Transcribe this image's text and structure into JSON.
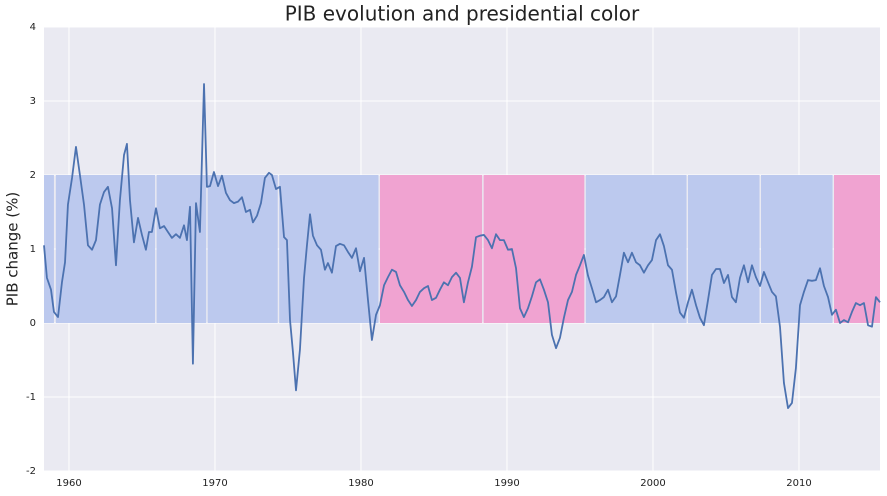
{
  "chart_data": {
    "type": "line",
    "title": "PIB evolution and presidential color",
    "y_label": "PIB change (%)",
    "x": [
      1958.29,
      1958.49,
      1958.77,
      1958.97,
      1959.25,
      1959.52,
      1959.73,
      1959.93,
      1960.21,
      1960.48,
      1960.75,
      1961.03,
      1961.3,
      1961.58,
      1961.85,
      1962.12,
      1962.4,
      1962.67,
      1962.95,
      1963.22,
      1963.49,
      1963.77,
      1963.97,
      1964.18,
      1964.45,
      1964.73,
      1965.0,
      1965.27,
      1965.48,
      1965.68,
      1965.96,
      1966.23,
      1966.51,
      1966.78,
      1967.05,
      1967.33,
      1967.6,
      1967.88,
      1968.08,
      1968.29,
      1968.49,
      1968.7,
      1968.97,
      1969.25,
      1969.45,
      1969.66,
      1969.93,
      1970.21,
      1970.48,
      1970.75,
      1971.03,
      1971.3,
      1971.58,
      1971.85,
      1972.12,
      1972.4,
      1972.6,
      1972.88,
      1973.15,
      1973.42,
      1973.7,
      1973.9,
      1974.18,
      1974.45,
      1974.73,
      1974.93,
      1975.14,
      1975.34,
      1975.55,
      1975.82,
      1976.1,
      1976.3,
      1976.51,
      1976.71,
      1976.99,
      1977.26,
      1977.53,
      1977.74,
      1978.01,
      1978.29,
      1978.56,
      1978.84,
      1979.11,
      1979.38,
      1979.66,
      1979.93,
      1980.21,
      1980.48,
      1980.75,
      1981.03,
      1981.3,
      1981.58,
      1981.85,
      1982.12,
      1982.4,
      1982.67,
      1982.95,
      1983.22,
      1983.49,
      1983.77,
      1984.04,
      1984.32,
      1984.59,
      1984.86,
      1985.14,
      1985.41,
      1985.68,
      1985.96,
      1986.23,
      1986.51,
      1986.78,
      1987.05,
      1987.33,
      1987.6,
      1987.88,
      1988.15,
      1988.42,
      1988.7,
      1988.97,
      1989.25,
      1989.52,
      1989.79,
      1990.07,
      1990.34,
      1990.62,
      1990.89,
      1991.16,
      1991.44,
      1991.71,
      1991.99,
      1992.26,
      1992.53,
      1992.81,
      1993.08,
      1993.36,
      1993.63,
      1993.9,
      1994.18,
      1994.45,
      1994.73,
      1995.0,
      1995.27,
      1995.55,
      1995.82,
      1996.1,
      1996.37,
      1996.64,
      1996.92,
      1997.19,
      1997.47,
      1997.74,
      1998.01,
      1998.29,
      1998.56,
      1998.84,
      1999.11,
      1999.38,
      1999.66,
      1999.93,
      2000.21,
      2000.48,
      2000.75,
      2001.03,
      2001.3,
      2001.58,
      2001.85,
      2002.12,
      2002.4,
      2002.67,
      2002.95,
      2003.22,
      2003.49,
      2003.77,
      2004.04,
      2004.32,
      2004.59,
      2004.86,
      2005.14,
      2005.41,
      2005.68,
      2005.96,
      2006.23,
      2006.51,
      2006.78,
      2007.05,
      2007.33,
      2007.6,
      2007.88,
      2008.15,
      2008.42,
      2008.7,
      2008.97,
      2009.25,
      2009.52,
      2009.79,
      2010.07,
      2010.34,
      2010.62,
      2010.89,
      2011.16,
      2011.44,
      2011.71,
      2011.99,
      2012.26,
      2012.53,
      2012.81,
      2013.08,
      2013.36,
      2013.63,
      2013.9,
      2014.18,
      2014.45,
      2014.73,
      2015.0,
      2015.27,
      2015.55
    ],
    "series": [
      {
        "color": "#4c72b0",
        "values": [
          1.05,
          0.61,
          0.45,
          0.15,
          0.08,
          0.55,
          0.82,
          1.6,
          1.96,
          2.38,
          2.0,
          1.6,
          1.05,
          0.99,
          1.12,
          1.6,
          1.77,
          1.84,
          1.55,
          0.78,
          1.66,
          2.27,
          2.42,
          1.66,
          1.09,
          1.42,
          1.19,
          0.99,
          1.23,
          1.23,
          1.55,
          1.28,
          1.31,
          1.23,
          1.15,
          1.2,
          1.15,
          1.32,
          1.12,
          1.57,
          -0.55,
          1.62,
          1.23,
          3.23,
          1.84,
          1.85,
          2.04,
          1.85,
          1.99,
          1.76,
          1.66,
          1.62,
          1.64,
          1.7,
          1.5,
          1.53,
          1.36,
          1.45,
          1.62,
          1.96,
          2.03,
          2.0,
          1.81,
          1.84,
          1.16,
          1.12,
          0.04,
          -0.39,
          -0.91,
          -0.36,
          0.61,
          1.05,
          1.47,
          1.18,
          1.05,
          0.99,
          0.72,
          0.81,
          0.68,
          1.04,
          1.07,
          1.05,
          0.96,
          0.88,
          1.01,
          0.7,
          0.88,
          0.31,
          -0.23,
          0.11,
          0.24,
          0.51,
          0.62,
          0.72,
          0.69,
          0.51,
          0.42,
          0.31,
          0.23,
          0.31,
          0.42,
          0.47,
          0.5,
          0.31,
          0.34,
          0.45,
          0.55,
          0.51,
          0.62,
          0.68,
          0.61,
          0.28,
          0.55,
          0.76,
          1.16,
          1.18,
          1.19,
          1.12,
          1.01,
          1.2,
          1.12,
          1.12,
          0.99,
          1.0,
          0.74,
          0.2,
          0.08,
          0.2,
          0.36,
          0.55,
          0.59,
          0.45,
          0.28,
          -0.16,
          -0.34,
          -0.2,
          0.07,
          0.31,
          0.42,
          0.65,
          0.78,
          0.92,
          0.64,
          0.47,
          0.28,
          0.31,
          0.35,
          0.45,
          0.28,
          0.36,
          0.65,
          0.95,
          0.82,
          0.95,
          0.82,
          0.78,
          0.68,
          0.78,
          0.85,
          1.12,
          1.2,
          1.04,
          0.78,
          0.72,
          0.41,
          0.14,
          0.07,
          0.28,
          0.45,
          0.24,
          0.07,
          -0.03,
          0.31,
          0.65,
          0.73,
          0.73,
          0.54,
          0.65,
          0.35,
          0.28,
          0.61,
          0.78,
          0.55,
          0.78,
          0.62,
          0.5,
          0.69,
          0.55,
          0.42,
          0.36,
          -0.05,
          -0.81,
          -1.15,
          -1.08,
          -0.61,
          0.24,
          0.42,
          0.58,
          0.57,
          0.58,
          0.74,
          0.5,
          0.35,
          0.11,
          0.18,
          0.0,
          0.04,
          0.01,
          0.15,
          0.27,
          0.24,
          0.27,
          -0.03,
          -0.05,
          0.35,
          0.28
        ]
      }
    ],
    "spans": [
      {
        "start": 1958.29,
        "end": 1958.97,
        "value": 2,
        "color": "#bcc9ee"
      },
      {
        "start": 1959.1,
        "end": 1965.9,
        "value": 2,
        "color": "#bcc9ee"
      },
      {
        "start": 1966.0,
        "end": 1969.4,
        "value": 2,
        "color": "#bcc9ee"
      },
      {
        "start": 1969.5,
        "end": 1974.3,
        "value": 2,
        "color": "#bcc9ee"
      },
      {
        "start": 1974.4,
        "end": 1981.2,
        "value": 2,
        "color": "#bcc9ee"
      },
      {
        "start": 1981.3,
        "end": 1988.3,
        "value": 2,
        "color": "#f0a3d1"
      },
      {
        "start": 1988.4,
        "end": 1995.3,
        "value": 2,
        "color": "#f0a3d1"
      },
      {
        "start": 1995.4,
        "end": 2002.3,
        "value": 2,
        "color": "#bcc9ee"
      },
      {
        "start": 2002.4,
        "end": 2007.3,
        "value": 2,
        "color": "#bcc9ee"
      },
      {
        "start": 2007.4,
        "end": 2012.3,
        "value": 2,
        "color": "#bcc9ee"
      },
      {
        "start": 2012.4,
        "end": 2015.55,
        "value": 2,
        "color": "#f0a3d1"
      }
    ],
    "xlim": [
      1958.29,
      2015.55
    ],
    "xticks": [
      1960,
      1970,
      1980,
      1990,
      2000,
      2010
    ],
    "ylim": [
      -2,
      4
    ],
    "yticks": [
      -2,
      -1,
      0,
      1,
      2,
      3,
      4
    ],
    "grid": true
  }
}
